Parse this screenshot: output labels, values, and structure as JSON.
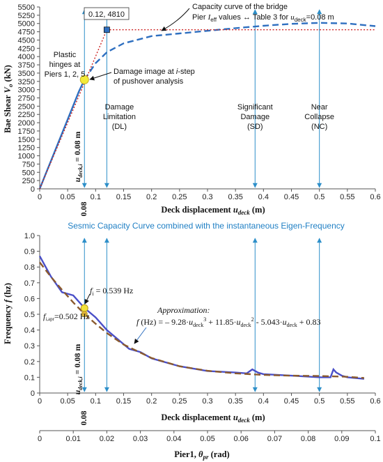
{
  "chart_data": [
    {
      "type": "line",
      "xlabel_text": "Deck displacement ",
      "xlabel_var": "u",
      "xlabel_sub": "deck",
      "xlabel_unit": " (m)",
      "ylabel_text": "Bae Shear ",
      "ylabel_var": "V",
      "ylabel_sub": "o",
      "ylabel_unit": " (kN)",
      "xlim": [
        0,
        0.6
      ],
      "ylim": [
        0,
        5500
      ],
      "xticks": [
        "0",
        "0.05",
        "0.1",
        "0.15",
        "0.2",
        "0.25",
        "0.3",
        "0.35",
        "0.4",
        "0.45",
        "0.5",
        "0.55",
        "0.6"
      ],
      "yticks": [
        "0",
        "250",
        "500",
        "750",
        "1000",
        "1250",
        "1500",
        "1750",
        "2000",
        "2250",
        "2500",
        "2750",
        "3000",
        "3250",
        "3500",
        "3750",
        "4000",
        "4250",
        "4500",
        "4750",
        "5000",
        "5250",
        "5500"
      ],
      "series": [
        {
          "name": "",
          "style": "solid",
          "color": "#2e6fc0",
          "x": [
            0,
            0.01,
            0.02,
            0.03,
            0.04,
            0.05,
            0.06,
            0.07,
            0.08
          ],
          "y": [
            0,
            420,
            840,
            1260,
            1680,
            2100,
            2520,
            2940,
            3300
          ]
        },
        {
          "name": "",
          "style": "dashed",
          "color": "#2e6fc0",
          "x": [
            0.08,
            0.1,
            0.12,
            0.15,
            0.2,
            0.25,
            0.3,
            0.35,
            0.4,
            0.45,
            0.5,
            0.55,
            0.6
          ],
          "y": [
            3300,
            3800,
            4130,
            4400,
            4620,
            4700,
            4780,
            4860,
            4930,
            4990,
            5020,
            5000,
            4920
          ]
        },
        {
          "name": "",
          "style": "dotted",
          "color": "#cc2222",
          "x": [
            0,
            0.12,
            0.6
          ],
          "y": [
            0,
            4810,
            4810
          ]
        }
      ],
      "yield_point": {
        "x": 0.12,
        "y": 4810,
        "label": "0.12, 4810"
      },
      "damage_point": {
        "x": 0.08,
        "y": 3300
      },
      "vertical_markers": [
        {
          "x": 0.08,
          "label": ""
        },
        {
          "x": 0.12,
          "label": "Damage\nLimitation\n(DL)"
        },
        {
          "x": 0.385,
          "label": "Significant\nDamage\n(SD)"
        },
        {
          "x": 0.5,
          "label": "Near\nCollapse\n(NC)"
        }
      ],
      "annotations": {
        "capacity_line1": "Capacity curve of the bridge",
        "capacity_line2_a": "Pier ",
        "capacity_line2_var": "I",
        "capacity_line2_sub": "eff",
        "capacity_line2_b": " values ↔ Table 3  for ",
        "capacity_line2_var2": "u",
        "capacity_line2_sub2": "deck",
        "capacity_line2_c": "=0.08 m",
        "plastic": [
          "Plastic",
          "hinges at",
          "Piers 1, 2, 5"
        ],
        "damage_a": "Damage image at ",
        "damage_var": "i",
        "damage_b": "-step",
        "damage_line2": "of pushover analysis",
        "udeck_var": "u",
        "udeck_sub": "deck,i",
        "udeck_val": " = 0.08 m",
        "x_marker": "0.08"
      }
    },
    {
      "type": "line",
      "title": "Sesmic Capacity Curve combined with the instantaneous Eigen-Frequency",
      "xlabel_text": "Deck displacement ",
      "xlabel_var": "u",
      "xlabel_sub": "deck",
      "xlabel_unit": " (m)",
      "ylabel_text": "Frequency ",
      "ylabel_var": "f",
      "ylabel_unit": " (hz)",
      "xlim": [
        0,
        0.6
      ],
      "ylim": [
        0,
        1.0
      ],
      "xticks": [
        "0",
        "0.05",
        "0.1",
        "0.15",
        "0.2",
        "0.25",
        "0.3",
        "0.35",
        "0.4",
        "0.45",
        "0.5",
        "0.55",
        "0.6"
      ],
      "yticks": [
        "0",
        "0.1",
        "0.2",
        "0.3",
        "0.4",
        "0.5",
        "0.6",
        "0.7",
        "0.8",
        "0.9",
        "1.0"
      ],
      "secondary_x": {
        "label_text": "Pier1, ",
        "label_var": "θ",
        "label_sub": "pr",
        "label_unit": " (rad)",
        "ticks": [
          "0",
          "0.01",
          "0.02",
          "0.03",
          "0.04",
          "0.05",
          "0.06",
          "0.07",
          "0.08",
          "0.09",
          "0.1"
        ],
        "xlim": [
          0,
          0.1
        ]
      },
      "series": [
        {
          "name": "",
          "style": "solid",
          "color": "#4a4fc8",
          "x": [
            0,
            0.02,
            0.04,
            0.06,
            0.08,
            0.1,
            0.12,
            0.14,
            0.16,
            0.18,
            0.2,
            0.22,
            0.25,
            0.3,
            0.35,
            0.37,
            0.38,
            0.39,
            0.4,
            0.45,
            0.5,
            0.52,
            0.525,
            0.53,
            0.54,
            0.55,
            0.58
          ],
          "y": [
            0.87,
            0.74,
            0.64,
            0.62,
            0.54,
            0.48,
            0.4,
            0.34,
            0.28,
            0.26,
            0.22,
            0.2,
            0.17,
            0.14,
            0.13,
            0.125,
            0.15,
            0.13,
            0.12,
            0.11,
            0.1,
            0.1,
            0.15,
            0.13,
            0.11,
            0.1,
            0.09
          ]
        },
        {
          "name": "",
          "style": "dashed",
          "color": "#8a5a2e",
          "x": [
            0,
            0.02,
            0.04,
            0.06,
            0.08,
            0.1,
            0.12,
            0.15,
            0.2,
            0.25,
            0.3,
            0.35,
            0.4,
            0.45,
            0.5,
            0.55,
            0.58
          ],
          "y": [
            0.83,
            0.738,
            0.655,
            0.575,
            0.502,
            0.44,
            0.381,
            0.308,
            0.222,
            0.17,
            0.141,
            0.125,
            0.115,
            0.11,
            0.108,
            0.103,
            0.095
          ]
        }
      ],
      "points": [
        {
          "x": 0.08,
          "y": 0.539,
          "color": "#f2e23a"
        },
        {
          "x": 0.08,
          "y": 0.502,
          "color": "#e0b43a"
        }
      ],
      "vertical_markers": [
        {
          "x": 0.08
        },
        {
          "x": 0.12
        },
        {
          "x": 0.385
        },
        {
          "x": 0.5
        }
      ],
      "annotations": {
        "fi_var": "f",
        "fi_sub": "i",
        "fi_val": " = 0.539 Hz",
        "fiapr_var": "f",
        "fiapr_sub": "i,apr",
        "fiapr_val": "=0.502 Hz",
        "approx_title": "Approximation:",
        "approx_var": "f",
        "approx_a": " (Hz) = – 9.28·",
        "approx_u1": "u",
        "approx_s1": "deck",
        "approx_p1": "3",
        "approx_b": " + 11.85·",
        "approx_u2": "u",
        "approx_s2": "deck",
        "approx_p2": "2",
        "approx_c": " - 5.043·",
        "approx_u3": "u",
        "approx_s3": "deck",
        "approx_d": " + 0.83",
        "udeck_var": "u",
        "udeck_sub": "deck,i",
        "udeck_val": " = 0.08 m",
        "x_marker": "0.08"
      }
    }
  ]
}
